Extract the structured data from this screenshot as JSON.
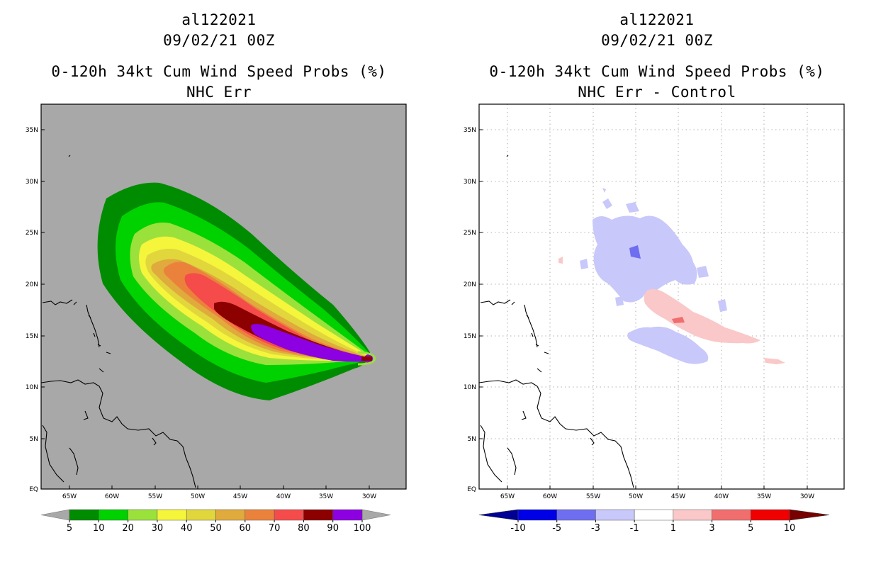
{
  "left_panel": {
    "storm_id": "al122021",
    "datetime": "09/02/21 00Z",
    "product": "0-120h 34kt Cum Wind Speed Probs (%)",
    "subtitle": "NHC Err",
    "colorbar": {
      "labels": [
        "5",
        "10",
        "20",
        "30",
        "40",
        "50",
        "60",
        "70",
        "80",
        "90",
        "100"
      ],
      "colors": [
        "#008c00",
        "#00d200",
        "#9be13c",
        "#f5f53c",
        "#e1d73c",
        "#e1aa3c",
        "#eb823c",
        "#f54b4b",
        "#8c0000",
        "#8c00e1"
      ],
      "endcap_color": "#a8a8a8"
    }
  },
  "right_panel": {
    "storm_id": "al122021",
    "datetime": "09/02/21 00Z",
    "product": "0-120h 34kt Cum Wind Speed Probs (%)",
    "subtitle": "NHC Err - Control",
    "colorbar": {
      "labels": [
        "-10",
        "-5",
        "-3",
        "-1",
        "1",
        "3",
        "5",
        "10"
      ],
      "colors": [
        "#0000e6",
        "#6e6ef0",
        "#c8c8fa",
        "#ffffff",
        "#fac8c8",
        "#f06e6e",
        "#f00000"
      ],
      "low_cap_color": "#000096",
      "high_cap_color": "#780000"
    }
  },
  "map": {
    "lat_labels": [
      "35N",
      "30N",
      "25N",
      "20N",
      "15N",
      "10N",
      "5N",
      "EQ"
    ],
    "lon_labels": [
      "65W",
      "60W",
      "55W",
      "50W",
      "45W",
      "40W",
      "35W",
      "30W"
    ],
    "left_background": "#a8a8a8",
    "right_background": "#ffffff"
  }
}
